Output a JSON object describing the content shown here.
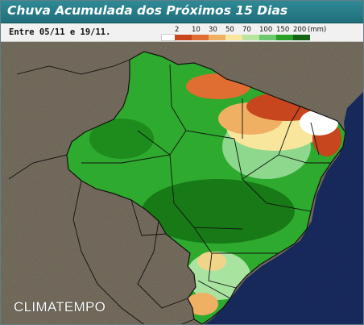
{
  "title": "Chuva Acumulada dos Próximos 15 Dias",
  "period": "Entre 05/11 e 19/11.",
  "legend": {
    "unit_label": "(mm)",
    "thresholds": [
      "2",
      "10",
      "30",
      "50",
      "70",
      "100",
      "150",
      "200"
    ],
    "colors": [
      "#ffffff",
      "#c8461e",
      "#e06e32",
      "#f0b064",
      "#f7e69c",
      "#b8e6a0",
      "#6cc86c",
      "#28a028",
      "#146414"
    ]
  },
  "brand": "CLIMATEMPO",
  "map": {
    "terrain_color": "#7e7565",
    "ocean_color": "#1a2e66",
    "border_color": "#111111"
  }
}
